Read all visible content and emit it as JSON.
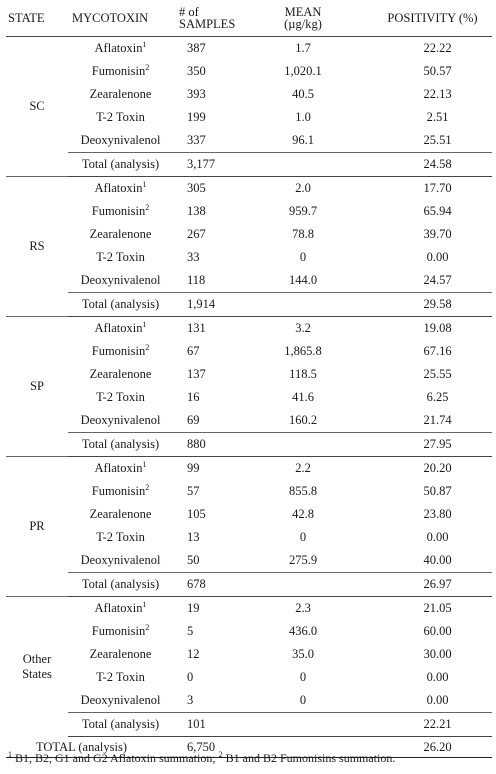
{
  "headers": {
    "state": "STATE",
    "mycotoxin": "MYCOTOXIN",
    "samples": "# of SAMPLES",
    "mean": "MEAN",
    "mean_unit": "(µg/kg)",
    "positivity": "POSITIVITY (%)"
  },
  "groups": [
    {
      "state": [
        "SC"
      ],
      "rows": [
        {
          "mycotoxin": "Aflatoxin",
          "sup": "1",
          "samples": "387",
          "mean": "1.7",
          "positivity": "22.22"
        },
        {
          "mycotoxin": "Fumonisin",
          "sup": "2",
          "samples": "350",
          "mean": "1,020.1",
          "positivity": "50.57"
        },
        {
          "mycotoxin": "Zearalenone",
          "sup": "",
          "samples": "393",
          "mean": "40.5",
          "positivity": "22.13"
        },
        {
          "mycotoxin": "T-2 Toxin",
          "sup": "",
          "samples": "199",
          "mean": "1.0",
          "positivity": "2.51"
        },
        {
          "mycotoxin": "Deoxynivalenol",
          "sup": "",
          "samples": "337",
          "mean": "96.1",
          "positivity": "25.51"
        }
      ],
      "total": {
        "label": "Total (analysis)",
        "samples": "3,177",
        "positivity": "24.58"
      }
    },
    {
      "state": [
        "RS"
      ],
      "rows": [
        {
          "mycotoxin": "Aflatoxin",
          "sup": "1",
          "samples": "305",
          "mean": "2.0",
          "positivity": "17.70"
        },
        {
          "mycotoxin": "Fumonisin",
          "sup": "2",
          "samples": "138",
          "mean": "959.7",
          "positivity": "65.94"
        },
        {
          "mycotoxin": "Zearalenone",
          "sup": "",
          "samples": "267",
          "mean": "78.8",
          "positivity": "39.70"
        },
        {
          "mycotoxin": "T-2 Toxin",
          "sup": "",
          "samples": "33",
          "mean": "0",
          "positivity": "0.00"
        },
        {
          "mycotoxin": "Deoxynivalenol",
          "sup": "",
          "samples": "118",
          "mean": "144.0",
          "positivity": "24.57"
        }
      ],
      "total": {
        "label": "Total (analysis)",
        "samples": "1,914",
        "positivity": "29.58"
      }
    },
    {
      "state": [
        "SP"
      ],
      "rows": [
        {
          "mycotoxin": "Aflatoxin",
          "sup": "1",
          "samples": "131",
          "mean": "3.2",
          "positivity": "19.08"
        },
        {
          "mycotoxin": "Fumonisin",
          "sup": "2",
          "samples": "67",
          "mean": "1,865.8",
          "positivity": "67.16"
        },
        {
          "mycotoxin": "Zearalenone",
          "sup": "",
          "samples": "137",
          "mean": "118.5",
          "positivity": "25.55"
        },
        {
          "mycotoxin": "T-2 Toxin",
          "sup": "",
          "samples": "16",
          "mean": "41.6",
          "positivity": "6.25"
        },
        {
          "mycotoxin": "Deoxynivalenol",
          "sup": "",
          "samples": "69",
          "mean": "160.2",
          "positivity": "21.74"
        }
      ],
      "total": {
        "label": "Total (analysis)",
        "samples": "880",
        "positivity": "27.95"
      }
    },
    {
      "state": [
        "PR"
      ],
      "rows": [
        {
          "mycotoxin": "Aflatoxin",
          "sup": "1",
          "samples": "99",
          "mean": "2.2",
          "positivity": "20.20"
        },
        {
          "mycotoxin": "Fumonisin",
          "sup": "2",
          "samples": "57",
          "mean": "855.8",
          "positivity": "50.87"
        },
        {
          "mycotoxin": "Zearalenone",
          "sup": "",
          "samples": "105",
          "mean": "42.8",
          "positivity": "23.80"
        },
        {
          "mycotoxin": "T-2 Toxin",
          "sup": "",
          "samples": "13",
          "mean": "0",
          "positivity": "0.00"
        },
        {
          "mycotoxin": "Deoxynivalenol",
          "sup": "",
          "samples": "50",
          "mean": "275.9",
          "positivity": "40.00"
        }
      ],
      "total": {
        "label": "Total (analysis)",
        "samples": "678",
        "positivity": "26.97"
      }
    },
    {
      "state": [
        "Other",
        "States"
      ],
      "rows": [
        {
          "mycotoxin": "Aflatoxin",
          "sup": "1",
          "samples": "19",
          "mean": "2.3",
          "positivity": "21.05"
        },
        {
          "mycotoxin": "Fumonisin",
          "sup": "2",
          "samples": "5",
          "mean": "436.0",
          "positivity": "60.00"
        },
        {
          "mycotoxin": "Zearalenone",
          "sup": "",
          "samples": "12",
          "mean": "35.0",
          "positivity": "30.00"
        },
        {
          "mycotoxin": "T-2 Toxin",
          "sup": "",
          "samples": "0",
          "mean": "0",
          "positivity": "0.00"
        },
        {
          "mycotoxin": "Deoxynivalenol",
          "sup": "",
          "samples": "3",
          "mean": "0",
          "positivity": "0.00"
        }
      ],
      "total": {
        "label": "Total (analysis)",
        "samples": "101",
        "positivity": "22.21"
      }
    }
  ],
  "grand_total": {
    "label": "TOTAL (analysis)",
    "samples": "6,750",
    "positivity": "26.20"
  },
  "footnote": {
    "sup1": "1",
    "text1": " B1, B2, G1 and G2 Aflatoxin summation; ",
    "sup2": "2",
    "text2": " B1 and B2 Fumonisins summation."
  }
}
